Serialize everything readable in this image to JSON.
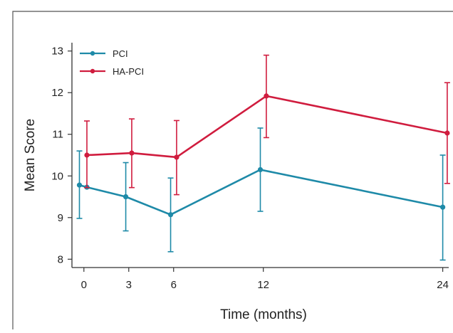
{
  "chart_data": {
    "type": "line",
    "xlabel": "Time (months)",
    "ylabel": "Mean Score",
    "x": [
      0,
      3,
      6,
      12,
      24
    ],
    "xlim": [
      -0.8,
      24.4
    ],
    "ylim": [
      7.8,
      13.2
    ],
    "x_ticks": [
      0,
      3,
      6,
      12,
      24
    ],
    "y_ticks": [
      8,
      9,
      10,
      11,
      12,
      13
    ],
    "grid": false,
    "legend_position": "top-left",
    "series": [
      {
        "name": "PCI",
        "color": "#1e8aa8",
        "x": [
          -0.3,
          0.2,
          2.8,
          5.8,
          11.8,
          24
        ],
        "values": [
          9.78,
          9.73,
          9.5,
          9.07,
          10.15,
          9.25
        ],
        "error_low": [
          8.98,
          null,
          8.68,
          8.18,
          9.15,
          7.98
        ],
        "error_high": [
          10.6,
          null,
          10.32,
          9.95,
          11.15,
          10.5
        ]
      },
      {
        "name": "HA-PCI",
        "color": "#d01c3e",
        "x": [
          0.2,
          3.2,
          6.2,
          12.2,
          24.3
        ],
        "values": [
          10.5,
          10.55,
          10.45,
          11.92,
          11.03
        ],
        "error_low": [
          9.72,
          9.72,
          9.55,
          10.92,
          9.82
        ],
        "error_high": [
          11.32,
          11.37,
          11.33,
          12.9,
          12.24
        ]
      }
    ]
  }
}
